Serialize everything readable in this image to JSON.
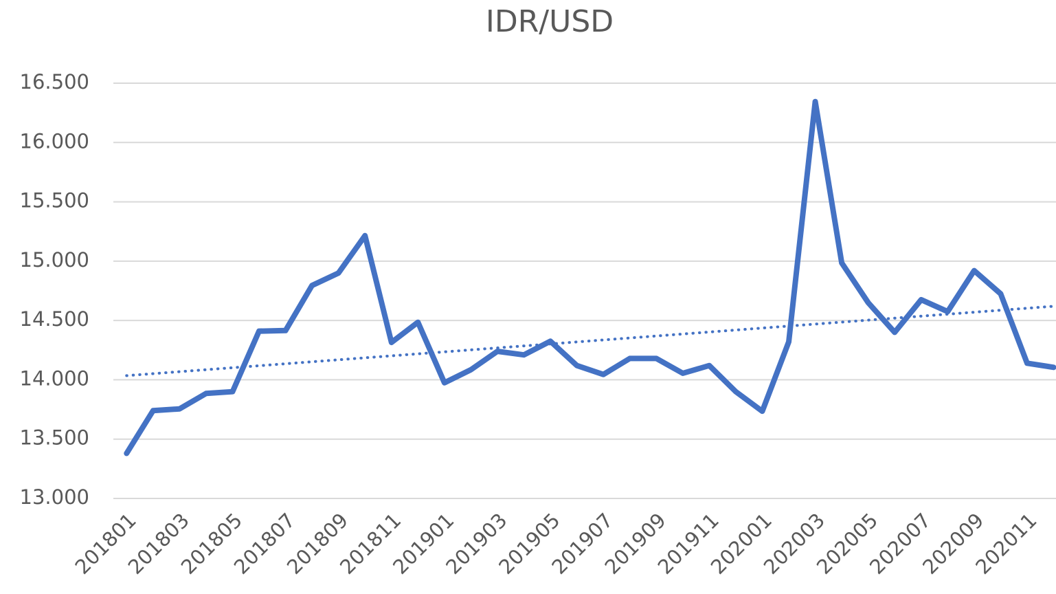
{
  "chart_data": {
    "type": "line",
    "title": "IDR/USD",
    "categories": [
      "201801",
      null,
      "201803",
      null,
      "201805",
      null,
      "201807",
      null,
      "201809",
      null,
      "201811",
      null,
      "201901",
      null,
      "201903",
      null,
      "201905",
      null,
      "201907",
      null,
      "201909",
      null,
      "201911",
      null,
      "202001",
      null,
      "202003",
      null,
      "202005",
      null,
      "202007",
      null,
      "202009",
      null,
      "202011",
      null
    ],
    "series": [
      {
        "name": "IDR/USD",
        "color": "#4472c4",
        "values": [
          13380,
          13740,
          13755,
          13885,
          13900,
          14410,
          14415,
          14795,
          14900,
          15215,
          14315,
          14485,
          13975,
          14085,
          14240,
          14210,
          14325,
          14120,
          14045,
          14180,
          14180,
          14055,
          14120,
          13900,
          13735,
          14320,
          16345,
          14985,
          14650,
          14400,
          14675,
          14575,
          14920,
          14725,
          14140,
          14105
        ]
      }
    ],
    "trendline": {
      "color": "#4472c4",
      "style": "dotted",
      "values": [
        14035,
        14620
      ]
    },
    "ylim": [
      13000,
      16500
    ],
    "yticks": [
      {
        "value": 13000,
        "label": "13.000"
      },
      {
        "value": 13500,
        "label": "13.500"
      },
      {
        "value": 14000,
        "label": "14.000"
      },
      {
        "value": 14500,
        "label": "14.500"
      },
      {
        "value": 15000,
        "label": "15.000"
      },
      {
        "value": 15500,
        "label": "15.500"
      },
      {
        "value": 16000,
        "label": "16.000"
      },
      {
        "value": 16500,
        "label": "16.500"
      }
    ],
    "grid": true
  }
}
